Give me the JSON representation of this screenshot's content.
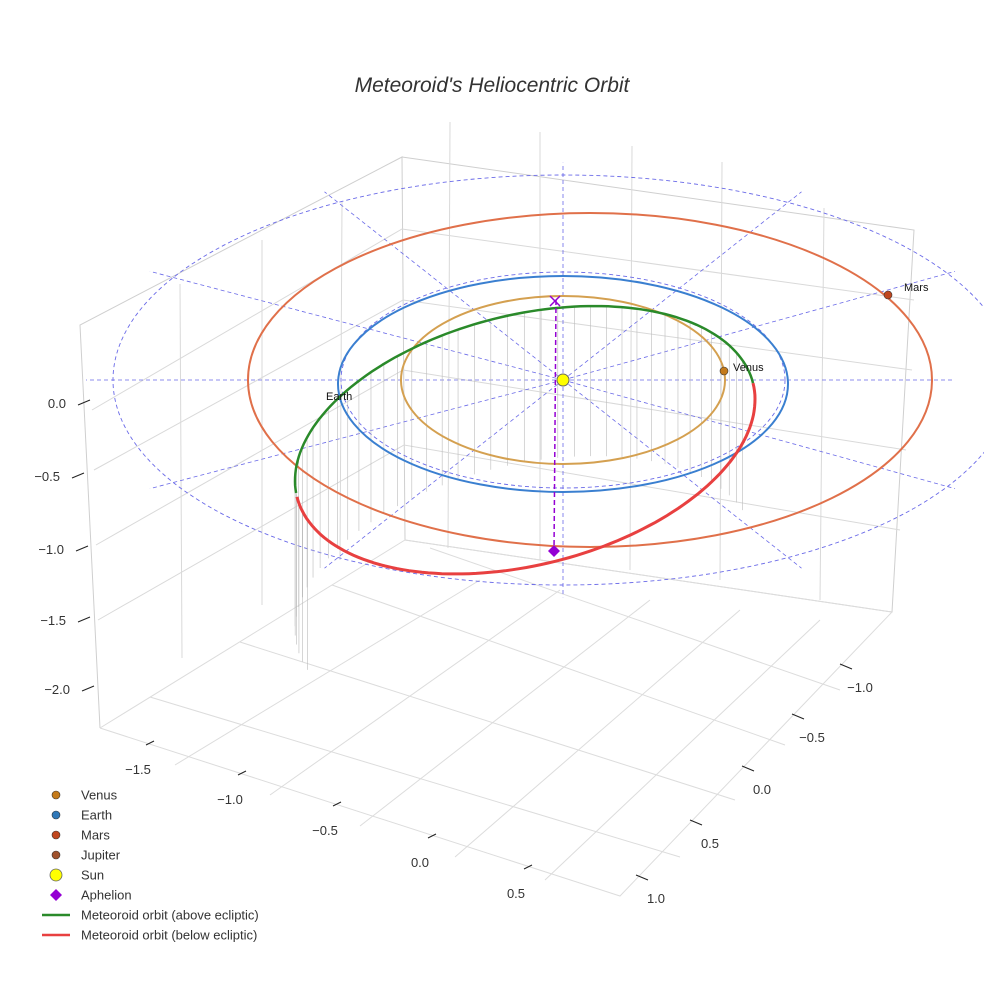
{
  "chart_data": {
    "type": "scatter",
    "projection": "3d",
    "title": "Meteoroid's Heliocentric Orbit",
    "xlabel": "",
    "ylabel": "",
    "zlabel": "",
    "x_ticks": [
      "−1.5",
      "−1.0",
      "−0.5",
      "0.0",
      "0.5"
    ],
    "y_ticks": [
      "−1.0",
      "−0.5",
      "0.0",
      "0.5",
      "1.0"
    ],
    "z_ticks": [
      "0.0",
      "−0.5",
      "−1.0",
      "−1.5",
      "−2.0"
    ],
    "grid": true,
    "legend_position": "bottom-left",
    "colors": {
      "venus": "#d4a050",
      "earth": "#3a7fd0",
      "mars": "#e0704a",
      "orbit_above": "#2a8a2a",
      "orbit_below": "#e84040",
      "aphelion": "#9400d3",
      "sun": "#ffff00",
      "ecliptic_grid": "#6a6ae8"
    },
    "planet_orbits": [
      {
        "name": "Venus",
        "semi_major_au": 0.72
      },
      {
        "name": "Earth",
        "semi_major_au": 1.0
      },
      {
        "name": "Mars",
        "semi_major_au": 1.52
      }
    ],
    "planet_labels": [
      {
        "name": "Venus",
        "text": "Venus"
      },
      {
        "name": "Earth",
        "text": "Earth"
      },
      {
        "name": "Mars",
        "text": "Mars"
      }
    ],
    "legend": [
      {
        "label": "Venus",
        "kind": "dot",
        "color": "#c47a1a"
      },
      {
        "label": "Earth",
        "kind": "dot",
        "color": "#2f78b8"
      },
      {
        "label": "Mars",
        "kind": "dot",
        "color": "#c0461e"
      },
      {
        "label": "Jupiter",
        "kind": "dot",
        "color": "#a0522d"
      },
      {
        "label": "Sun",
        "kind": "bigdot",
        "color": "#ffff00"
      },
      {
        "label": "Aphelion",
        "kind": "diamond",
        "color": "#9400d3"
      },
      {
        "label": "Meteoroid orbit (above ecliptic)",
        "kind": "line",
        "color": "#2a8a2a"
      },
      {
        "label": "Meteoroid orbit (below ecliptic)",
        "kind": "line",
        "color": "#e84040"
      }
    ]
  }
}
